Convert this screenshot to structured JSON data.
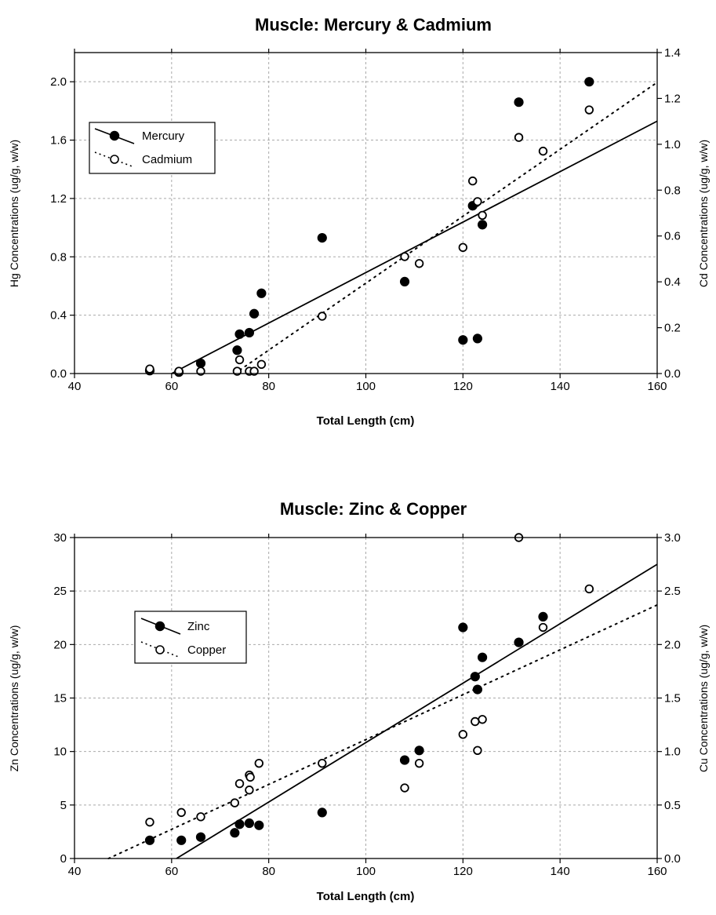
{
  "chart_data": [
    {
      "type": "scatter",
      "title": "Muscle: Mercury & Cadmium",
      "xlabel": "Total Length (cm)",
      "ylabel": "Hg Concentrations (ug/g, w/w)",
      "ylabel_right": "Cd Concentrations (ug/g, w/w)",
      "xlim": [
        40,
        160
      ],
      "ylim": [
        0,
        2.2
      ],
      "ylim_right": [
        0,
        1.4
      ],
      "xticks": [
        40,
        60,
        80,
        100,
        120,
        140,
        160
      ],
      "yticks": [
        0.0,
        0.4,
        0.8,
        1.2,
        1.6,
        2.0
      ],
      "yticks_right": [
        0.0,
        0.2,
        0.4,
        0.6,
        0.8,
        1.0,
        1.2,
        1.4
      ],
      "grid": true,
      "legend_position": "upper-left",
      "series": [
        {
          "name": "Mercury",
          "marker": "filled-circle",
          "axis": "left",
          "trend_style": "solid",
          "trend": [
            [
              60,
              0.0
            ],
            [
              160,
              1.73
            ]
          ],
          "points": [
            [
              55.5,
              0.02
            ],
            [
              61.5,
              0.01
            ],
            [
              66,
              0.07
            ],
            [
              73.5,
              0.16
            ],
            [
              74,
              0.27
            ],
            [
              76,
              0.28
            ],
            [
              77,
              0.41
            ],
            [
              78.5,
              0.55
            ],
            [
              91,
              0.93
            ],
            [
              108,
              0.63
            ],
            [
              120,
              0.23
            ],
            [
              122,
              1.15
            ],
            [
              123,
              0.24
            ],
            [
              124,
              1.02
            ],
            [
              131.5,
              1.86
            ],
            [
              146,
              2.0
            ]
          ]
        },
        {
          "name": "Cadmium",
          "marker": "open-circle",
          "axis": "right",
          "trend_style": "dotted",
          "trend": [
            [
              73,
              0.0
            ],
            [
              160,
              1.27
            ]
          ],
          "points": [
            [
              55.5,
              0.02
            ],
            [
              61.5,
              0.01
            ],
            [
              66,
              0.01
            ],
            [
              73.5,
              0.01
            ],
            [
              74,
              0.06
            ],
            [
              76,
              0.01
            ],
            [
              77,
              0.01
            ],
            [
              78.5,
              0.04
            ],
            [
              91,
              0.25
            ],
            [
              108,
              0.51
            ],
            [
              111,
              0.48
            ],
            [
              120,
              0.55
            ],
            [
              122,
              0.84
            ],
            [
              123,
              0.75
            ],
            [
              124,
              0.69
            ],
            [
              131.5,
              1.03
            ],
            [
              136.5,
              0.97
            ],
            [
              146,
              1.15
            ]
          ]
        }
      ]
    },
    {
      "type": "scatter",
      "title": "Muscle: Zinc & Copper",
      "xlabel": "Total Length (cm)",
      "ylabel": "Zn Concentrations (ug/g, w/w)",
      "ylabel_right": "Cu Concentrations (ug/g, w/w)",
      "xlim": [
        40,
        160
      ],
      "ylim": [
        0,
        30
      ],
      "ylim_right": [
        0,
        3.0
      ],
      "xticks": [
        40,
        60,
        80,
        100,
        120,
        140,
        160
      ],
      "yticks": [
        0,
        5,
        10,
        15,
        20,
        25,
        30
      ],
      "yticks_right": [
        0.0,
        0.5,
        1.0,
        1.5,
        2.0,
        2.5,
        3.0
      ],
      "grid": true,
      "legend_position": "upper-left",
      "series": [
        {
          "name": "Zinc",
          "marker": "filled-circle",
          "axis": "left",
          "trend_style": "solid",
          "trend": [
            [
              61,
              0.0
            ],
            [
              160,
              27.5
            ]
          ],
          "points": [
            [
              55.5,
              1.7
            ],
            [
              62,
              1.7
            ],
            [
              66,
              2.0
            ],
            [
              73,
              2.4
            ],
            [
              74,
              3.2
            ],
            [
              76,
              3.3
            ],
            [
              78,
              3.1
            ],
            [
              91,
              4.3
            ],
            [
              108,
              9.2
            ],
            [
              111,
              10.1
            ],
            [
              120,
              21.6
            ],
            [
              122.5,
              17.0
            ],
            [
              123,
              15.8
            ],
            [
              124,
              18.8
            ],
            [
              131.5,
              20.2
            ],
            [
              136.5,
              22.6
            ]
          ]
        },
        {
          "name": "Copper",
          "marker": "open-circle",
          "axis": "right",
          "trend_style": "dotted",
          "trend": [
            [
              47,
              0.0
            ],
            [
              160,
              2.37
            ]
          ],
          "points": [
            [
              55.5,
              0.34
            ],
            [
              62,
              0.43
            ],
            [
              66,
              0.39
            ],
            [
              73,
              0.52
            ],
            [
              74,
              0.7
            ],
            [
              76,
              0.78
            ],
            [
              76.2,
              0.76
            ],
            [
              76,
              0.64
            ],
            [
              78,
              0.89
            ],
            [
              91,
              0.89
            ],
            [
              108,
              0.66
            ],
            [
              111,
              0.89
            ],
            [
              120,
              1.16
            ],
            [
              122.5,
              1.28
            ],
            [
              123,
              1.01
            ],
            [
              124,
              1.3
            ],
            [
              131.5,
              3.0
            ],
            [
              136.5,
              2.16
            ],
            [
              146,
              2.52
            ]
          ]
        }
      ]
    }
  ]
}
